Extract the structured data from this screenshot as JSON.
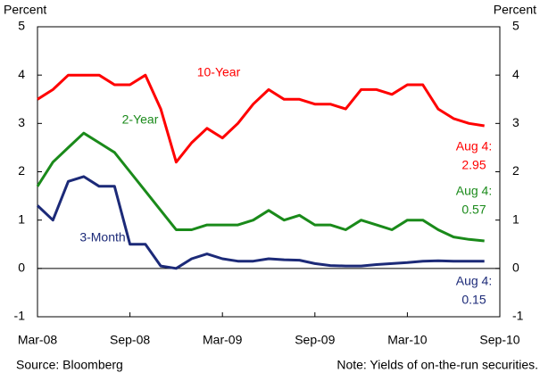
{
  "chart_data": {
    "type": "line",
    "y_label": "Percent",
    "y2_label": "Percent",
    "categories": [
      "Mar-08",
      null,
      null,
      null,
      null,
      null,
      "Sep-08",
      null,
      null,
      null,
      null,
      null,
      "Mar-09",
      null,
      null,
      null,
      null,
      null,
      "Sep-09",
      null,
      null,
      null,
      null,
      null,
      "Mar-10",
      null,
      null,
      null,
      null,
      null,
      "Sep-10"
    ],
    "series": [
      {
        "name": "10-Year",
        "color": "#ff0000",
        "end_label": "Aug 4:",
        "values": [
          3.5,
          3.7,
          4.0,
          4.0,
          4.0,
          3.8,
          3.8,
          4.0,
          3.3,
          2.2,
          2.6,
          2.9,
          2.7,
          3.0,
          3.4,
          3.7,
          3.5,
          3.5,
          3.4,
          3.4,
          3.3,
          3.7,
          3.7,
          3.6,
          3.8,
          3.8,
          3.3,
          3.1,
          3.0,
          2.95,
          null
        ],
        "value_labels": [
          null,
          null,
          null,
          null,
          null,
          null,
          null,
          null,
          null,
          null,
          null,
          null,
          null,
          null,
          null,
          null,
          null,
          null,
          null,
          null,
          null,
          null,
          null,
          null,
          null,
          null,
          null,
          null,
          null,
          "2.95",
          null
        ]
      },
      {
        "name": "2-Year",
        "color": "#1a8a1a",
        "end_label": "Aug 4:",
        "values": [
          1.7,
          2.2,
          2.5,
          2.8,
          2.6,
          2.4,
          2.0,
          1.6,
          1.2,
          0.8,
          0.8,
          0.9,
          0.9,
          0.9,
          1.0,
          1.2,
          1.0,
          1.1,
          0.9,
          0.9,
          0.8,
          1.0,
          0.9,
          0.8,
          1.0,
          1.0,
          0.8,
          0.65,
          0.6,
          0.57,
          null
        ],
        "value_labels": [
          null,
          null,
          null,
          null,
          null,
          null,
          null,
          null,
          null,
          null,
          null,
          null,
          null,
          null,
          null,
          null,
          null,
          null,
          null,
          null,
          null,
          null,
          null,
          null,
          null,
          null,
          null,
          null,
          null,
          "0.57",
          null
        ]
      },
      {
        "name": "3-Month",
        "color": "#1c2a78",
        "end_label": "Aug 4:",
        "values": [
          1.3,
          1.0,
          1.8,
          1.9,
          1.7,
          1.7,
          0.5,
          0.5,
          0.05,
          0.0,
          0.2,
          0.3,
          0.2,
          0.15,
          0.15,
          0.2,
          0.18,
          0.17,
          0.1,
          0.06,
          0.05,
          0.05,
          0.08,
          0.1,
          0.12,
          0.15,
          0.16,
          0.15,
          0.15,
          0.15,
          null
        ],
        "value_labels": [
          null,
          null,
          null,
          null,
          null,
          null,
          null,
          null,
          null,
          null,
          null,
          null,
          null,
          null,
          null,
          null,
          null,
          null,
          null,
          null,
          null,
          null,
          null,
          null,
          null,
          null,
          null,
          null,
          null,
          "0.15",
          null
        ]
      }
    ],
    "ylim": [
      -1,
      5
    ],
    "yticks": [
      -1,
      0,
      1,
      2,
      3,
      4,
      5
    ],
    "y2lim": [
      -1,
      5
    ],
    "y2ticks": [
      -1,
      0,
      1,
      2,
      3,
      4,
      5
    ],
    "zero_line": true,
    "source": "Source: Bloomberg",
    "note": "Note: Yields of on-the-run securities."
  }
}
